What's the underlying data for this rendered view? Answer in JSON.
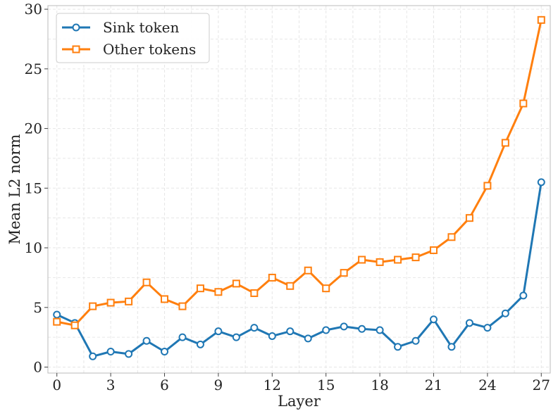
{
  "chart_data": {
    "type": "line",
    "title": "",
    "xlabel": "Layer",
    "ylabel": "Mean L2 norm",
    "xlim": [
      -0.5,
      27.5
    ],
    "ylim": [
      -0.5,
      30.3
    ],
    "xticks": [
      0,
      3,
      6,
      9,
      12,
      15,
      18,
      21,
      24,
      27
    ],
    "yticks": [
      0,
      5,
      10,
      15,
      20,
      25,
      30
    ],
    "grid": true,
    "legend_position": "top-left",
    "x": [
      0,
      1,
      2,
      3,
      4,
      5,
      6,
      7,
      8,
      9,
      10,
      11,
      12,
      13,
      14,
      15,
      16,
      17,
      18,
      19,
      20,
      21,
      22,
      23,
      24,
      25,
      26,
      27
    ],
    "series": [
      {
        "name": "Sink token",
        "color": "#1f77b4",
        "marker": "circle",
        "values": [
          4.4,
          3.7,
          0.9,
          1.3,
          1.1,
          2.2,
          1.3,
          2.5,
          1.9,
          3.0,
          2.5,
          3.3,
          2.6,
          3.0,
          2.4,
          3.1,
          3.4,
          3.2,
          3.1,
          1.7,
          2.2,
          4.0,
          1.7,
          3.7,
          3.3,
          4.5,
          6.0,
          15.5
        ]
      },
      {
        "name": "Other tokens",
        "color": "#ff7f0e",
        "marker": "square",
        "values": [
          3.8,
          3.5,
          5.1,
          5.4,
          5.5,
          7.1,
          5.7,
          5.1,
          6.6,
          6.3,
          7.0,
          6.2,
          7.5,
          6.8,
          8.1,
          6.6,
          7.9,
          9.0,
          8.8,
          9.0,
          9.2,
          9.8,
          10.9,
          12.5,
          15.2,
          18.8,
          22.1,
          29.1
        ]
      }
    ]
  }
}
